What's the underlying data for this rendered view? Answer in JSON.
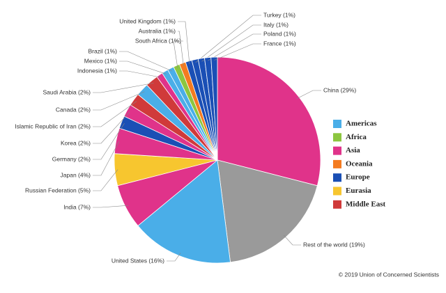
{
  "chart_data": {
    "type": "pie",
    "categories": [
      "China (29%)",
      "Rest of the world (19%)",
      "United States (16%)",
      "India (7%)",
      "Russian Federation (5%)",
      "Japan (4%)",
      "Germany (2%)",
      "Korea (2%)",
      "Islamic Republic of Iran (2%)",
      "Canada (2%)",
      "Saudi Arabia (2%)",
      "Indonesia (1%)",
      "Mexico (1%)",
      "Brazil (1%)",
      "South Africa (1%)",
      "Australia (1%)",
      "United Kingdom (1%)",
      "Turkey (1%)",
      "Italy (1%)",
      "Poland (1%)",
      "France (1%)"
    ],
    "values": [
      29,
      19,
      16,
      7,
      5,
      4,
      2,
      2,
      2,
      2,
      2,
      1,
      1,
      1,
      1,
      1,
      1,
      1,
      1,
      1,
      1
    ],
    "colors": [
      "#e0338a",
      "#9a9a9a",
      "#4aaee8",
      "#e0338a",
      "#f7c62f",
      "#e0338a",
      "#1a4fb5",
      "#e0338a",
      "#d03a3a",
      "#4aaee8",
      "#d03a3a",
      "#e0338a",
      "#4aaee8",
      "#4aaee8",
      "#8cc63f",
      "#f47b20",
      "#1a4fb5",
      "#1a4fb5",
      "#1a4fb5",
      "#1a4fb5",
      "#1a4fb5"
    ],
    "legend": [
      {
        "name": "Americas",
        "color": "#4aaee8"
      },
      {
        "name": "Africa",
        "color": "#8cc63f"
      },
      {
        "name": "Asia",
        "color": "#e0338a"
      },
      {
        "name": "Oceania",
        "color": "#f47b20"
      },
      {
        "name": "Europe",
        "color": "#1a4fb5"
      },
      {
        "name": "Eurasia",
        "color": "#f7c62f"
      },
      {
        "name": "Middle East",
        "color": "#d03a3a"
      }
    ],
    "credit": "© 2019 Union of Concerned Scientists"
  }
}
